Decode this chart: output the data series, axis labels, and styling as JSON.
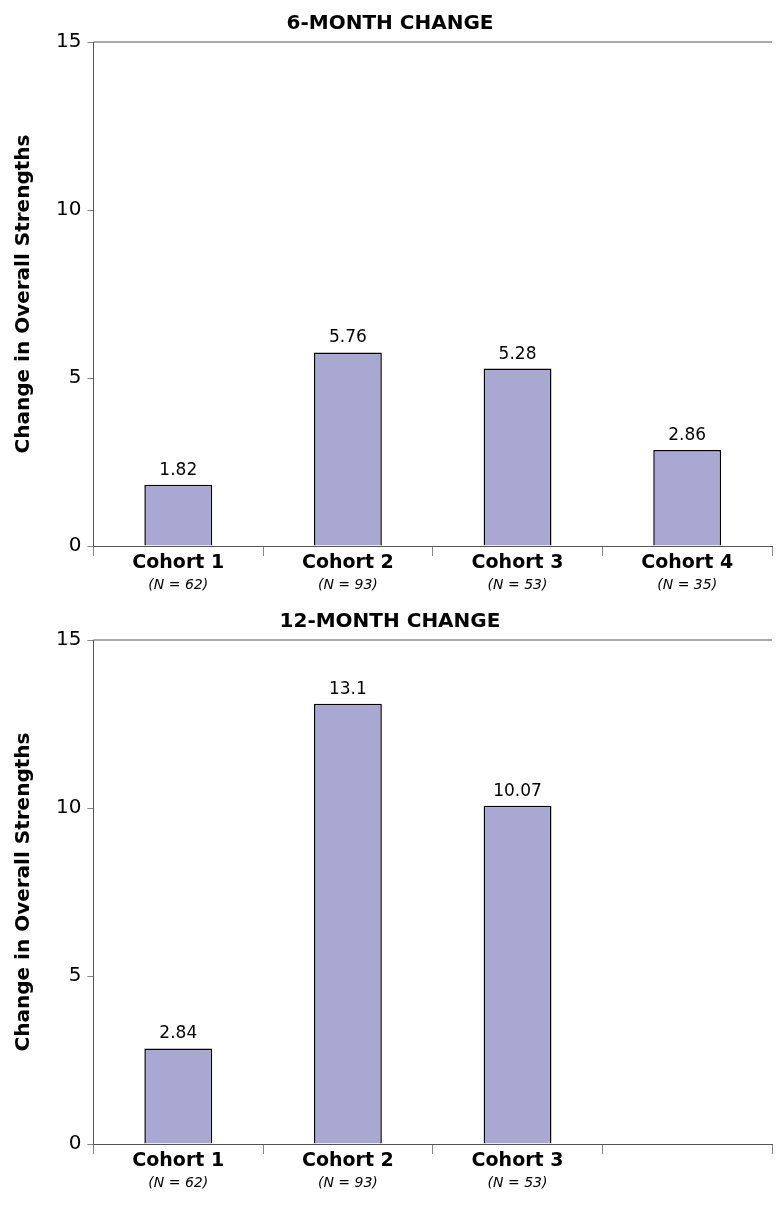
{
  "chart_data": [
    {
      "type": "bar",
      "title": "6-MONTH CHANGE",
      "ylabel": "Change in Overall Strengths",
      "categories": [
        "Cohort 1\n(N = 62)",
        "Cohort 2\n(N = 93)",
        "Cohort 3\n(N = 53)",
        "Cohort 4\n(N = 35)"
      ],
      "values": [
        1.82,
        5.76,
        5.28,
        2.86
      ],
      "color": "#a8a8d2",
      "ylim": [
        0,
        15
      ],
      "yticks": [
        0,
        5,
        10,
        15
      ],
      "grid": false,
      "legend": false,
      "data_labels": true
    },
    {
      "type": "bar",
      "title": "12-MONTH CHANGE",
      "ylabel": "Change in Overall Strengths",
      "categories": [
        "Cohort 1\n(N = 62)",
        "Cohort 2\n(N = 93)",
        "Cohort 3\n(N = 53)",
        null
      ],
      "values": [
        2.84,
        13.1,
        10.07,
        null
      ],
      "color": "#a8a8d2",
      "ylim": [
        0,
        15
      ],
      "yticks": [
        0,
        5,
        10,
        15
      ],
      "grid": false,
      "legend": false,
      "data_labels": true
    }
  ]
}
